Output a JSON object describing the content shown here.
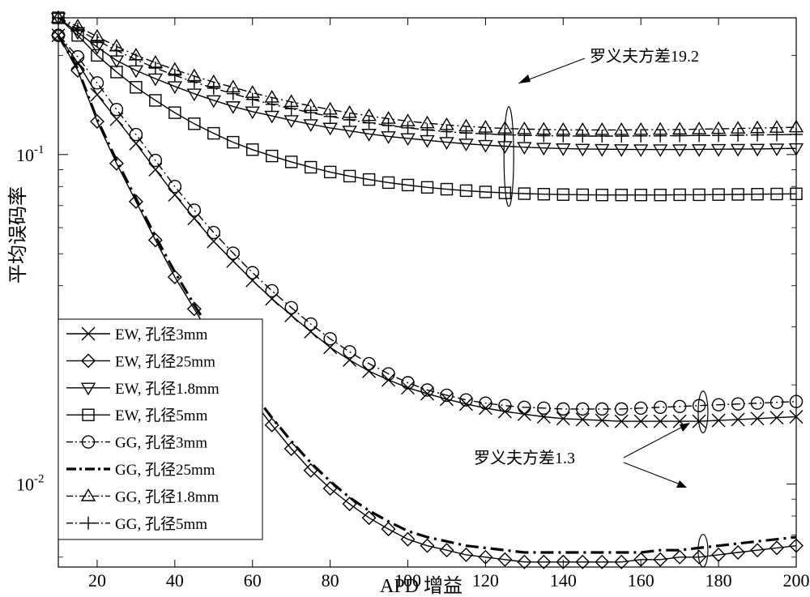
{
  "chart_data": {
    "type": "line",
    "xlabel": "APD 增益",
    "ylabel": "平均误码率",
    "xlim": [
      10,
      200
    ],
    "ylim": [
      0.0056,
      0.26
    ],
    "yscale": "log",
    "xticks": [
      20,
      40,
      60,
      80,
      100,
      120,
      140,
      160,
      180,
      200
    ],
    "yticks": [
      {
        "value": 0.1,
        "base": "10",
        "exp": "-1"
      },
      {
        "value": 0.01,
        "base": "10",
        "exp": "-2"
      }
    ],
    "grid": false,
    "legend_position": "bottom-left",
    "x": [
      10,
      15,
      20,
      25,
      30,
      35,
      40,
      45,
      50,
      55,
      60,
      65,
      70,
      75,
      80,
      85,
      90,
      95,
      100,
      105,
      110,
      115,
      120,
      125,
      130,
      135,
      140,
      145,
      150,
      155,
      160,
      165,
      170,
      175,
      180,
      185,
      190,
      195,
      200
    ],
    "series": [
      {
        "name": "EW, 孔径3mm",
        "marker": "x",
        "line": "solid",
        "values": [
          0.23,
          0.19,
          0.152,
          0.128,
          0.108,
          0.09,
          0.0755,
          0.064,
          0.0545,
          0.0475,
          0.0415,
          0.0365,
          0.0325,
          0.029,
          0.026,
          0.0238,
          0.022,
          0.0207,
          0.0196,
          0.0188,
          0.0181,
          0.0175,
          0.017,
          0.0166,
          0.0163,
          0.016,
          0.0158,
          0.0157,
          0.0156,
          0.0155,
          0.0155,
          0.0155,
          0.0155,
          0.0155,
          0.0156,
          0.0157,
          0.0158,
          0.0159,
          0.016
        ]
      },
      {
        "name": "EW, 孔径25mm",
        "marker": "diamond",
        "line": "solid",
        "values": [
          0.23,
          0.18,
          0.126,
          0.094,
          0.072,
          0.055,
          0.0425,
          0.034,
          0.0272,
          0.022,
          0.018,
          0.0151,
          0.0128,
          0.011,
          0.0097,
          0.0087,
          0.0079,
          0.0073,
          0.0068,
          0.0065,
          0.0063,
          0.0061,
          0.006,
          0.0059,
          0.0058,
          0.0058,
          0.0058,
          0.0058,
          0.0058,
          0.0058,
          0.0059,
          0.0059,
          0.006,
          0.006,
          0.0061,
          0.0062,
          0.0063,
          0.0064,
          0.0065
        ]
      },
      {
        "name": "EW, 孔径1.8mm",
        "marker": "triangle-down",
        "line": "solid",
        "values": [
          0.26,
          0.235,
          0.212,
          0.193,
          0.18,
          0.17,
          0.161,
          0.153,
          0.146,
          0.14,
          0.135,
          0.131,
          0.127,
          0.1235,
          0.1205,
          0.118,
          0.1155,
          0.1135,
          0.112,
          0.1105,
          0.109,
          0.1078,
          0.1068,
          0.106,
          0.1053,
          0.1047,
          0.1043,
          0.104,
          0.1038,
          0.1037,
          0.1036,
          0.1036,
          0.1036,
          0.1037,
          0.1038,
          0.1039,
          0.104,
          0.1042,
          0.1044
        ]
      },
      {
        "name": "EW, 孔径5mm",
        "marker": "square",
        "line": "solid",
        "values": [
          0.26,
          0.23,
          0.2,
          0.178,
          0.16,
          0.146,
          0.134,
          0.124,
          0.116,
          0.109,
          0.1035,
          0.099,
          0.095,
          0.0915,
          0.0885,
          0.086,
          0.084,
          0.0822,
          0.0808,
          0.0795,
          0.0785,
          0.0777,
          0.077,
          0.0765,
          0.0761,
          0.0758,
          0.0756,
          0.0755,
          0.0754,
          0.0754,
          0.0754,
          0.0754,
          0.0755,
          0.0755,
          0.0756,
          0.0757,
          0.0758,
          0.0759,
          0.076
        ]
      },
      {
        "name": "GG, 孔径3mm",
        "marker": "circle",
        "line": "dash-dot",
        "values": [
          0.23,
          0.198,
          0.165,
          0.137,
          0.115,
          0.096,
          0.08,
          0.0678,
          0.058,
          0.0502,
          0.0438,
          0.0386,
          0.0343,
          0.0306,
          0.0276,
          0.0252,
          0.0232,
          0.0216,
          0.0203,
          0.0193,
          0.0186,
          0.018,
          0.0176,
          0.0173,
          0.0171,
          0.017,
          0.0169,
          0.0169,
          0.0169,
          0.0169,
          0.017,
          0.0171,
          0.0172,
          0.0173,
          0.0174,
          0.0175,
          0.0176,
          0.0177,
          0.0178
        ]
      },
      {
        "name": "GG, 孔径25mm",
        "marker": "none",
        "line": "dash-dot",
        "values": [
          0.23,
          0.182,
          0.128,
          0.096,
          0.0735,
          0.0565,
          0.044,
          0.035,
          0.0282,
          0.023,
          0.019,
          0.0159,
          0.0135,
          0.0116,
          0.0102,
          0.0091,
          0.0083,
          0.0077,
          0.0072,
          0.0069,
          0.0067,
          0.0065,
          0.0064,
          0.0063,
          0.0062,
          0.0062,
          0.0062,
          0.0062,
          0.0062,
          0.0062,
          0.0062,
          0.0063,
          0.0063,
          0.0064,
          0.0065,
          0.0066,
          0.0067,
          0.0068,
          0.0069
        ]
      },
      {
        "name": "GG, 孔径1.8mm",
        "marker": "triangle-up",
        "line": "dash-dot",
        "values": [
          0.26,
          0.245,
          0.228,
          0.213,
          0.2,
          0.19,
          0.181,
          0.173,
          0.166,
          0.16,
          0.154,
          0.149,
          0.1445,
          0.1405,
          0.137,
          0.1338,
          0.131,
          0.1285,
          0.1263,
          0.1245,
          0.123,
          0.1218,
          0.1208,
          0.12,
          0.1195,
          0.1191,
          0.1189,
          0.1188,
          0.1188,
          0.1188,
          0.1189,
          0.119,
          0.1192,
          0.1194,
          0.1197,
          0.12,
          0.1203,
          0.1207,
          0.121
        ]
      },
      {
        "name": "GG, 孔径5mm",
        "marker": "plus",
        "line": "dash-dot",
        "values": [
          0.26,
          0.24,
          0.222,
          0.207,
          0.194,
          0.183,
          0.174,
          0.166,
          0.159,
          0.153,
          0.147,
          0.142,
          0.1378,
          0.134,
          0.1305,
          0.1275,
          0.1248,
          0.1225,
          0.1205,
          0.1188,
          0.1174,
          0.1163,
          0.1155,
          0.1149,
          0.1144,
          0.1141,
          0.1139,
          0.1138,
          0.1138,
          0.1138,
          0.1139,
          0.114,
          0.1141,
          0.1142,
          0.1143,
          0.1145,
          0.1147,
          0.1149,
          0.1151
        ]
      }
    ],
    "annotations": [
      {
        "text": "罗义夫方差19.2",
        "target_x": 122,
        "target_y": 0.175
      },
      {
        "text": "罗义夫方差1.3",
        "target_x": 118,
        "target_y": 0.0118
      }
    ],
    "group_ellipses": [
      {
        "x": 126,
        "y_low": 0.072,
        "y_high": 0.135
      },
      {
        "x": 176,
        "y_low": 0.0148,
        "y_high": 0.0185
      },
      {
        "x": 176,
        "y_low": 0.0058,
        "y_high": 0.0068
      }
    ]
  }
}
